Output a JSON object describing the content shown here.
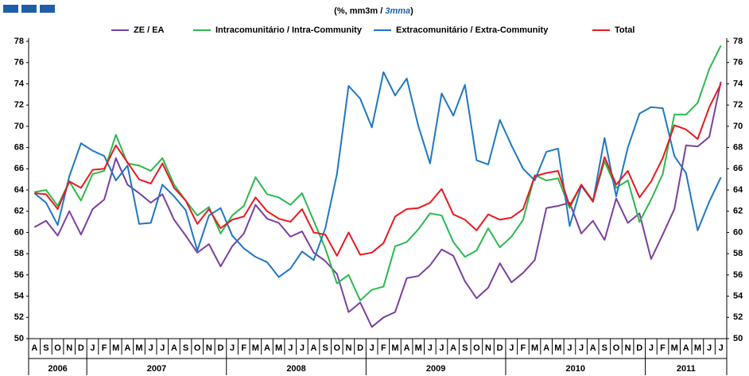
{
  "chart_data": {
    "type": "line",
    "subtitle": [
      "(%, mm3m / ",
      "3mma",
      ")"
    ],
    "category_groups": [
      {
        "label": "2006",
        "categories": [
          "A",
          "S",
          "O",
          "N",
          "D"
        ]
      },
      {
        "label": "2007",
        "categories": [
          "J",
          "F",
          "M",
          "A",
          "M",
          "J",
          "J",
          "A",
          "S",
          "O",
          "N",
          "D"
        ]
      },
      {
        "label": "2008",
        "categories": [
          "J",
          "F",
          "M",
          "A",
          "M",
          "J",
          "J",
          "A",
          "S",
          "O",
          "N",
          "D"
        ]
      },
      {
        "label": "2009",
        "categories": [
          "J",
          "F",
          "M",
          "A",
          "M",
          "J",
          "J",
          "A",
          "S",
          "O",
          "N",
          "D"
        ]
      },
      {
        "label": "2010",
        "categories": [
          "J",
          "F",
          "M",
          "A",
          "M",
          "J",
          "J",
          "A",
          "S",
          "O",
          "N",
          "D"
        ]
      },
      {
        "label": "2011",
        "categories": [
          "J",
          "F",
          "M",
          "A",
          "M",
          "J",
          "J"
        ]
      }
    ],
    "series": [
      {
        "name": "ZE / EA",
        "color": "#7b3fa0",
        "values": [
          60.5,
          61.1,
          59.7,
          62.0,
          59.8,
          62.2,
          63.1,
          67.0,
          64.5,
          63.7,
          62.8,
          63.6,
          61.2,
          59.7,
          58.1,
          58.9,
          56.8,
          58.7,
          59.9,
          62.6,
          61.3,
          60.9,
          59.6,
          60.1,
          58.1,
          57.3,
          56.1,
          52.5,
          53.4,
          51.1,
          52.0,
          52.5,
          55.7,
          55.9,
          56.9,
          58.4,
          57.8,
          55.4,
          53.8,
          54.8,
          57.1,
          55.3,
          56.2,
          57.4,
          62.3,
          62.5,
          62.8,
          59.9,
          61.1,
          59.3,
          63.2,
          60.9,
          61.8,
          57.5,
          59.8,
          62.2,
          68.2,
          68.1,
          69.0,
          74.2
        ]
      },
      {
        "name": "Intracomunitário / Intra-Community",
        "color": "#2db84d",
        "values": [
          63.8,
          64.0,
          62.5,
          64.8,
          63.0,
          65.5,
          65.8,
          69.2,
          66.5,
          66.3,
          65.8,
          67.0,
          64.5,
          63.0,
          61.6,
          62.4,
          59.9,
          61.6,
          62.5,
          65.2,
          63.6,
          63.3,
          62.6,
          63.7,
          61.1,
          58.5,
          55.2,
          56.0,
          53.6,
          54.6,
          54.9,
          58.7,
          59.1,
          60.3,
          61.8,
          61.6,
          59.1,
          57.7,
          58.3,
          60.4,
          58.6,
          59.6,
          61.2,
          65.4,
          64.9,
          65.1,
          62.3,
          64.5,
          63.0,
          66.7,
          64.2,
          64.9,
          61.0,
          63.1,
          65.5,
          71.1,
          71.1,
          72.2,
          75.4,
          77.6
        ]
      },
      {
        "name": "Extracomunitário / Extra-Community",
        "color": "#1f77c4",
        "values": [
          63.7,
          62.8,
          60.7,
          65.3,
          68.4,
          67.7,
          67.2,
          64.9,
          66.3,
          60.8,
          60.9,
          64.5,
          63.4,
          62.1,
          58.3,
          61.6,
          62.3,
          59.7,
          58.5,
          57.7,
          57.2,
          55.8,
          56.6,
          58.2,
          57.4,
          60.4,
          65.5,
          73.8,
          72.6,
          69.9,
          75.1,
          72.9,
          74.5,
          70.0,
          66.5,
          73.1,
          71.0,
          73.9,
          66.8,
          66.4,
          70.6,
          68.2,
          66.0,
          64.9,
          67.6,
          67.9,
          60.6,
          64.4,
          62.9,
          68.9,
          63.4,
          68.0,
          71.2,
          71.8,
          71.7,
          67.2,
          65.6,
          60.2,
          62.9,
          65.2
        ]
      },
      {
        "name": "Total",
        "color": "#e8191f",
        "values": [
          63.7,
          63.6,
          62.2,
          64.8,
          64.2,
          65.9,
          66.0,
          68.2,
          66.6,
          65.0,
          64.6,
          66.5,
          64.2,
          63.0,
          60.8,
          62.2,
          60.4,
          61.2,
          61.5,
          63.3,
          62.0,
          61.3,
          61.0,
          62.2,
          60.0,
          59.8,
          57.8,
          60.0,
          57.9,
          58.1,
          59.0,
          61.5,
          62.2,
          62.3,
          62.8,
          64.1,
          61.7,
          61.2,
          60.2,
          61.7,
          61.2,
          61.4,
          62.2,
          65.3,
          65.6,
          65.8,
          62.5,
          64.5,
          62.9,
          67.1,
          64.5,
          65.8,
          63.3,
          64.8,
          67.0,
          70.1,
          69.7,
          68.8,
          71.8,
          74.0
        ]
      }
    ],
    "ylim": [
      50,
      78
    ],
    "yticks": [
      50,
      52,
      54,
      56,
      58,
      60,
      62,
      64,
      66,
      68,
      70,
      72,
      74,
      76,
      78
    ],
    "grid": false
  }
}
